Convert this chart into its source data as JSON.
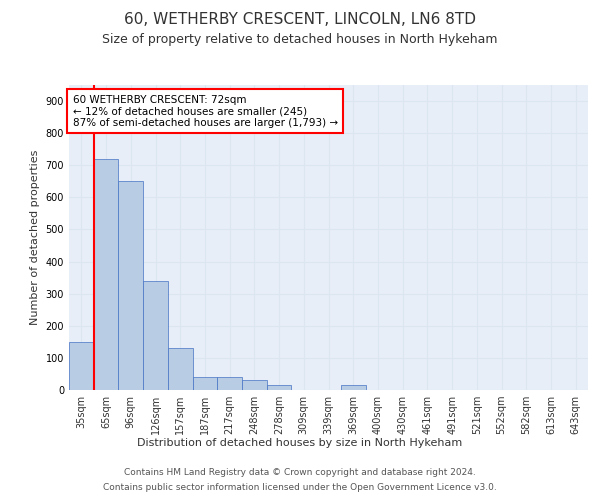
{
  "title1": "60, WETHERBY CRESCENT, LINCOLN, LN6 8TD",
  "title2": "Size of property relative to detached houses in North Hykeham",
  "xlabel": "Distribution of detached houses by size in North Hykeham",
  "ylabel": "Number of detached properties",
  "categories": [
    "35sqm",
    "65sqm",
    "96sqm",
    "126sqm",
    "157sqm",
    "187sqm",
    "217sqm",
    "248sqm",
    "278sqm",
    "309sqm",
    "339sqm",
    "369sqm",
    "400sqm",
    "430sqm",
    "461sqm",
    "491sqm",
    "521sqm",
    "552sqm",
    "582sqm",
    "613sqm",
    "643sqm"
  ],
  "values": [
    150,
    720,
    650,
    340,
    130,
    40,
    40,
    30,
    15,
    0,
    0,
    15,
    0,
    0,
    0,
    0,
    0,
    0,
    0,
    0,
    0
  ],
  "bar_color": "#b8cce4",
  "bar_edge_color": "#4472c4",
  "vline_color": "#ff0000",
  "ylim": [
    0,
    950
  ],
  "yticks": [
    0,
    100,
    200,
    300,
    400,
    500,
    600,
    700,
    800,
    900
  ],
  "annotation_text": "60 WETHERBY CRESCENT: 72sqm\n← 12% of detached houses are smaller (245)\n87% of semi-detached houses are larger (1,793) →",
  "annotation_box_color": "#ff0000",
  "footer1": "Contains HM Land Registry data © Crown copyright and database right 2024.",
  "footer2": "Contains public sector information licensed under the Open Government Licence v3.0.",
  "grid_color": "#dce6f1",
  "plot_bg_color": "#e8eef7",
  "fig_bg_color": "#ffffff",
  "title1_fontsize": 11,
  "title2_fontsize": 9,
  "ylabel_fontsize": 8,
  "xlabel_fontsize": 8,
  "tick_fontsize": 7,
  "annotation_fontsize": 7.5,
  "footer_fontsize": 6.5
}
